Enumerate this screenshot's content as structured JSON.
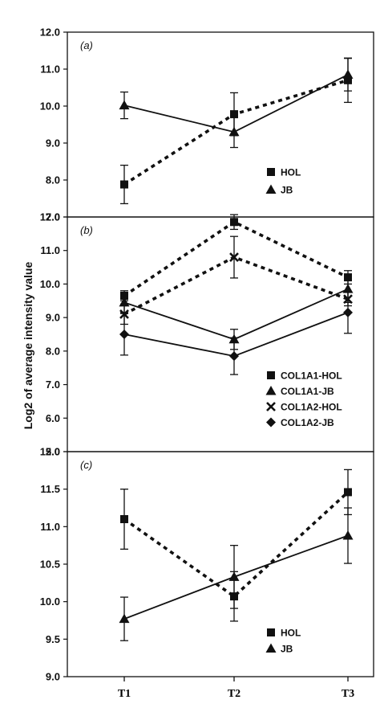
{
  "figure": {
    "ylabel": "Log2 of average intensity value",
    "x_categories": [
      "T1",
      "T2",
      "T3"
    ]
  },
  "chart_data": [
    {
      "type": "line",
      "panel_label": "(a)",
      "categories": [
        "T1",
        "T2",
        "T3"
      ],
      "ylim": [
        7.0,
        12.0
      ],
      "yticks": [
        "7.0",
        "8.0",
        "9.0",
        "10.0",
        "11.0",
        "12.0"
      ],
      "legend": {
        "position": "bottom-right"
      },
      "series": [
        {
          "name": "HOL",
          "marker": "square",
          "line_style": "dashed",
          "values": [
            7.88,
            9.78,
            10.7
          ],
          "error": [
            0.52,
            0.58,
            0.6
          ]
        },
        {
          "name": "JB",
          "marker": "triangle",
          "line_style": "solid",
          "values": [
            10.02,
            9.3,
            10.85
          ],
          "error": [
            0.36,
            0.42,
            0.44
          ]
        }
      ]
    },
    {
      "type": "line",
      "panel_label": "(b)",
      "categories": [
        "T1",
        "T2",
        "T3"
      ],
      "ylim": [
        5.0,
        12.0
      ],
      "yticks": [
        "5.0",
        "6.0",
        "7.0",
        "8.0",
        "9.0",
        "10.0",
        "11.0",
        "12.0"
      ],
      "legend": {
        "position": "bottom-right"
      },
      "series": [
        {
          "name": "COL1A1-HOL",
          "marker": "square",
          "line_style": "dashed",
          "values": [
            9.65,
            11.85,
            10.2
          ],
          "error": [
            0.15,
            0.22,
            0.2
          ]
        },
        {
          "name": "COL1A1-JB",
          "marker": "triangle",
          "line_style": "solid",
          "values": [
            9.45,
            8.35,
            9.85
          ],
          "error": [
            0.3,
            0.3,
            0.4
          ]
        },
        {
          "name": "COL1A2-HOL",
          "marker": "x",
          "line_style": "dashed",
          "values": [
            9.1,
            10.8,
            9.55
          ],
          "error": [
            0.3,
            0.62,
            0.2
          ]
        },
        {
          "name": "COL1A2-JB",
          "marker": "diamond",
          "line_style": "solid",
          "values": [
            8.5,
            7.85,
            9.15
          ],
          "error": [
            0.62,
            0.55,
            0.62
          ]
        }
      ]
    },
    {
      "type": "line",
      "panel_label": "(c)",
      "categories": [
        "T1",
        "T2",
        "T3"
      ],
      "ylim": [
        9.0,
        12.0
      ],
      "yticks": [
        "9.0",
        "9.5",
        "10.0",
        "10.5",
        "11.0",
        "11.5",
        "12.0"
      ],
      "legend": {
        "position": "bottom-right"
      },
      "series": [
        {
          "name": "HOL",
          "marker": "square",
          "line_style": "dashed",
          "values": [
            11.1,
            10.07,
            11.46
          ],
          "error": [
            0.4,
            0.33,
            0.3
          ]
        },
        {
          "name": "JB",
          "marker": "triangle",
          "line_style": "solid",
          "values": [
            9.77,
            10.33,
            10.88
          ],
          "error": [
            0.29,
            0.42,
            0.37
          ]
        }
      ]
    }
  ]
}
